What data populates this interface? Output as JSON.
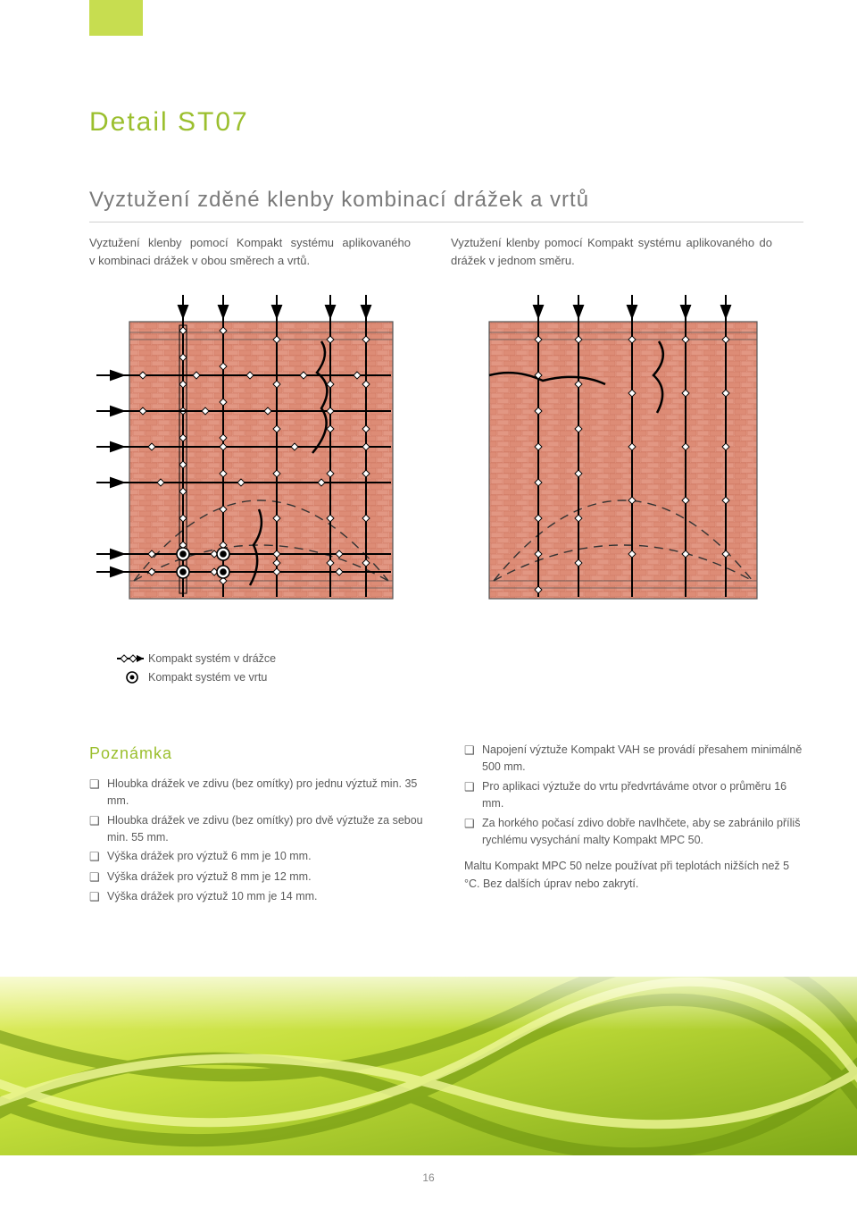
{
  "title": "Detail ST07",
  "subtitle": "Vyztužení zděné klenby kombinací drážek a vrtů",
  "caption_left": "Vyztužení klenby pomocí Kompakt systému aplikovaného v kombinaci drážek v obou směrech a vrtů.",
  "caption_right": "Vyztužení klenby pomocí Kompakt systému aplikovaného do drážek v jednom směru.",
  "legend": {
    "item1": "Kompakt systém v drážce",
    "item2": "Kompakt systém ve vrtu"
  },
  "notes_heading": "Poznámka",
  "notes_left": [
    "Hloubka drážek ve zdivu (bez omítky) pro jednu výztuž min. 35 mm.",
    "Hloubka drážek ve zdivu (bez omítky) pro dvě výztuže za sebou min. 55 mm.",
    "Výška drážek pro výztuž 6 mm je 10 mm.",
    "Výška drážek pro výztuž 8 mm je 12 mm.",
    "Výška drážek pro výztuž 10 mm je 14 mm."
  ],
  "notes_right_bullets": [
    "Napojení výztuže Kompakt VAH se provádí přesahem minimálně 500 mm.",
    "Pro aplikaci výztuže do vrtu předvrtáváme otvor o průměru 16 mm.",
    "Za horkého počasí zdivo dobře navlhčete, aby se zabránilo příliš rychlému vysychání malty Kompakt MPC 50."
  ],
  "notes_right_plain": "Maltu Kompakt MPC 50 nelze používat při teplotách nižších než 5 °C. Bez dalších úprav nebo zakrytí.",
  "page_number": "16",
  "colors": {
    "accent": "#c7dd50",
    "heading": "#9bbf2e",
    "brick_light": "#e9a491",
    "brick_dark": "#d47a66",
    "brick_border": "#b85d4a",
    "bg": "#ffffff",
    "text": "#5a5a5a",
    "footer_green_light": "#d9e84a",
    "footer_green_dark": "#8fb020"
  },
  "diagram_left": {
    "type": "technical-illustration",
    "has_horizontal_bars": true,
    "has_vertical_bars": true,
    "has_drill_points": true,
    "vertical_bar_x": [
      0.2,
      0.32,
      0.5,
      0.68,
      0.82
    ],
    "horizontal_bar_y": [
      0.28,
      0.4,
      0.52,
      0.64,
      0.85,
      0.92
    ],
    "drill_xy": [
      [
        0.2,
        0.85
      ],
      [
        0.32,
        0.85
      ],
      [
        0.2,
        0.92
      ],
      [
        0.32,
        0.92
      ]
    ],
    "crack_paths": true,
    "arch_lines": 2
  },
  "diagram_right": {
    "type": "technical-illustration",
    "has_horizontal_bars": false,
    "has_vertical_bars": true,
    "has_drill_points": false,
    "vertical_bar_x": [
      0.18,
      0.3,
      0.48,
      0.66,
      0.8
    ],
    "crack_paths": true,
    "arch_lines": 2
  }
}
